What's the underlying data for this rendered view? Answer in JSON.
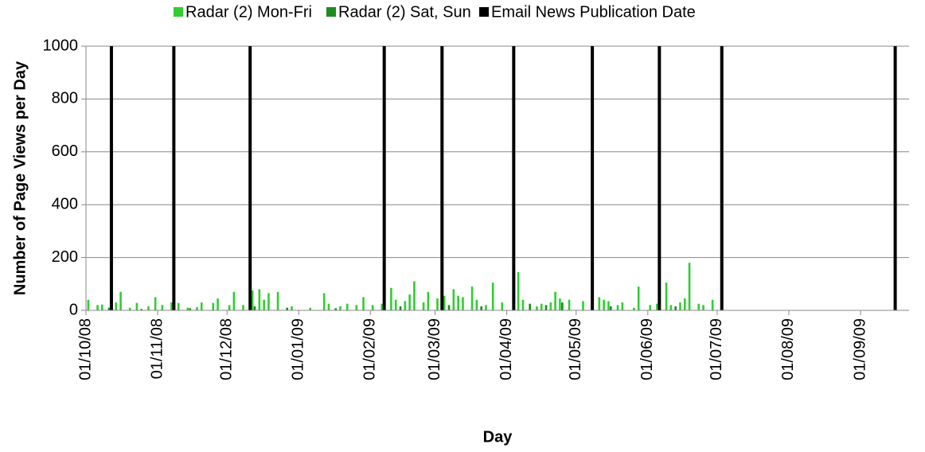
{
  "chart_data": {
    "type": "bar",
    "y_label": "Number of Page Views per Day",
    "x_label": "Day",
    "ylim": [
      0,
      1000
    ],
    "yticks": [
      0,
      200,
      400,
      600,
      800,
      1000
    ],
    "grid": true,
    "xlim": [
      "2008-10-01",
      "2009-09-22"
    ],
    "xticks": [
      {
        "value": "2008-10-01",
        "label": "01/10/08"
      },
      {
        "value": "2008-11-01",
        "label": "01/11/08"
      },
      {
        "value": "2008-12-01",
        "label": "01/12/08"
      },
      {
        "value": "2009-01-01",
        "label": "01/01/09"
      },
      {
        "value": "2009-02-01",
        "label": "01/02/09"
      },
      {
        "value": "2009-03-01",
        "label": "01/03/09"
      },
      {
        "value": "2009-04-01",
        "label": "01/04/09"
      },
      {
        "value": "2009-05-01",
        "label": "01/05/09"
      },
      {
        "value": "2009-06-01",
        "label": "01/06/09"
      },
      {
        "value": "2009-07-01",
        "label": "01/07/09"
      },
      {
        "value": "2009-08-01",
        "label": "01/08/09"
      },
      {
        "value": "2009-09-01",
        "label": "01/09/09"
      }
    ],
    "legend": "top",
    "series": [
      {
        "name": "Radar (2) Mon-Fri",
        "color": "#33cc33",
        "x": [
          "2008-10-02",
          "2008-10-06",
          "2008-10-08",
          "2008-10-14",
          "2008-10-16",
          "2008-10-20",
          "2008-10-23",
          "2008-10-28",
          "2008-10-31",
          "2008-11-03",
          "2008-11-07",
          "2008-11-10",
          "2008-11-14",
          "2008-11-18",
          "2008-11-20",
          "2008-11-25",
          "2008-11-27",
          "2008-12-02",
          "2008-12-04",
          "2008-12-08",
          "2008-12-12",
          "2008-12-15",
          "2008-12-17",
          "2008-12-19",
          "2008-12-23",
          "2008-12-29",
          "2009-01-06",
          "2009-01-12",
          "2009-01-14",
          "2009-01-19",
          "2009-01-22",
          "2009-01-26",
          "2009-01-29",
          "2009-02-02",
          "2009-02-06",
          "2009-02-10",
          "2009-02-12",
          "2009-02-16",
          "2009-02-18",
          "2009-02-20",
          "2009-02-24",
          "2009-02-26",
          "2009-03-02",
          "2009-03-05",
          "2009-03-09",
          "2009-03-11",
          "2009-03-13",
          "2009-03-17",
          "2009-03-19",
          "2009-03-23",
          "2009-03-26",
          "2009-03-30",
          "2009-04-06",
          "2009-04-08",
          "2009-04-14",
          "2009-04-16",
          "2009-04-20",
          "2009-04-22",
          "2009-04-24",
          "2009-04-28",
          "2009-05-04",
          "2009-05-08",
          "2009-05-11",
          "2009-05-13",
          "2009-05-15",
          "2009-05-19",
          "2009-05-21",
          "2009-05-26",
          "2009-05-28",
          "2009-06-02",
          "2009-06-05",
          "2009-06-09",
          "2009-06-11",
          "2009-06-15",
          "2009-06-17",
          "2009-06-19",
          "2009-06-23",
          "2009-06-25",
          "2009-06-29"
        ],
        "values": [
          40,
          20,
          22,
          30,
          70,
          10,
          28,
          15,
          50,
          20,
          30,
          28,
          10,
          12,
          30,
          28,
          45,
          20,
          70,
          20,
          75,
          80,
          40,
          65,
          70,
          15,
          10,
          65,
          25,
          15,
          25,
          20,
          50,
          20,
          25,
          85,
          40,
          35,
          60,
          110,
          30,
          70,
          45,
          55,
          80,
          55,
          50,
          90,
          40,
          20,
          105,
          30,
          145,
          40,
          15,
          25,
          30,
          70,
          45,
          40,
          35,
          100,
          50,
          40,
          35,
          20,
          30,
          10,
          90,
          20,
          25,
          105,
          20,
          30,
          45,
          180,
          25,
          20,
          40
        ]
      },
      {
        "name": "Radar (2) Sat, Sun",
        "color": "#1e8c1e",
        "x": [
          "2008-10-11",
          "2008-10-25",
          "2008-11-15",
          "2008-12-13",
          "2008-12-27",
          "2009-01-17",
          "2009-02-14",
          "2009-03-07",
          "2009-03-21",
          "2009-04-11",
          "2009-04-18",
          "2009-04-25",
          "2009-05-16",
          "2009-06-06",
          "2009-06-13"
        ],
        "values": [
          10,
          5,
          8,
          15,
          10,
          8,
          15,
          20,
          15,
          25,
          20,
          30,
          15,
          10,
          15
        ]
      },
      {
        "name": "Email News Publication Date",
        "color": "#000000",
        "x": [
          "2008-10-12",
          "2008-11-08",
          "2008-12-11",
          "2009-02-07",
          "2009-03-04",
          "2009-04-04",
          "2009-05-08",
          "2009-06-06",
          "2009-07-03",
          "2009-09-16"
        ],
        "values": [
          1000,
          1000,
          1000,
          1000,
          1000,
          1000,
          1000,
          1000,
          1000,
          1000
        ]
      }
    ]
  }
}
